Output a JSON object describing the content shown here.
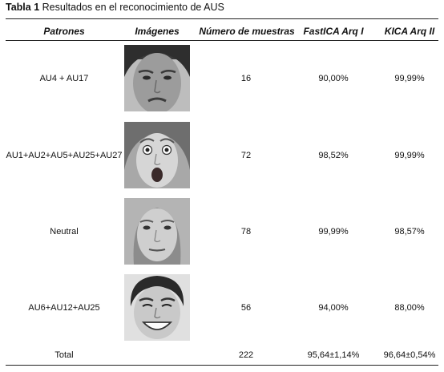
{
  "caption": {
    "label": "Tabla 1",
    "text": "Resultados en el reconocimiento de AUS"
  },
  "headers": {
    "patrones": "Patrones",
    "imagenes": "Imágenes",
    "muestras": "Número de muestras",
    "fastica": "FastICA Arq I",
    "kica": "KICA Arq II"
  },
  "rows": [
    {
      "patron": "AU4 + AU17",
      "muestras": "16",
      "fastica": "90,00%",
      "kica": "99,99%",
      "image": "face-frown-photo"
    },
    {
      "patron": "AU1+AU2+AU5+AU25+AU27",
      "muestras": "72",
      "fastica": "98,52%",
      "kica": "99,99%",
      "image": "face-surprise-photo"
    },
    {
      "patron": "Neutral",
      "muestras": "78",
      "fastica": "99,99%",
      "kica": "98,57%",
      "image": "face-neutral-photo"
    },
    {
      "patron": "AU6+AU12+AU25",
      "muestras": "56",
      "fastica": "94,00%",
      "kica": "88,00%",
      "image": "face-smile-photo"
    }
  ],
  "total": {
    "label": "Total",
    "muestras": "222",
    "fastica": "95,64±1,14%",
    "kica": "96,64±0,54%"
  }
}
